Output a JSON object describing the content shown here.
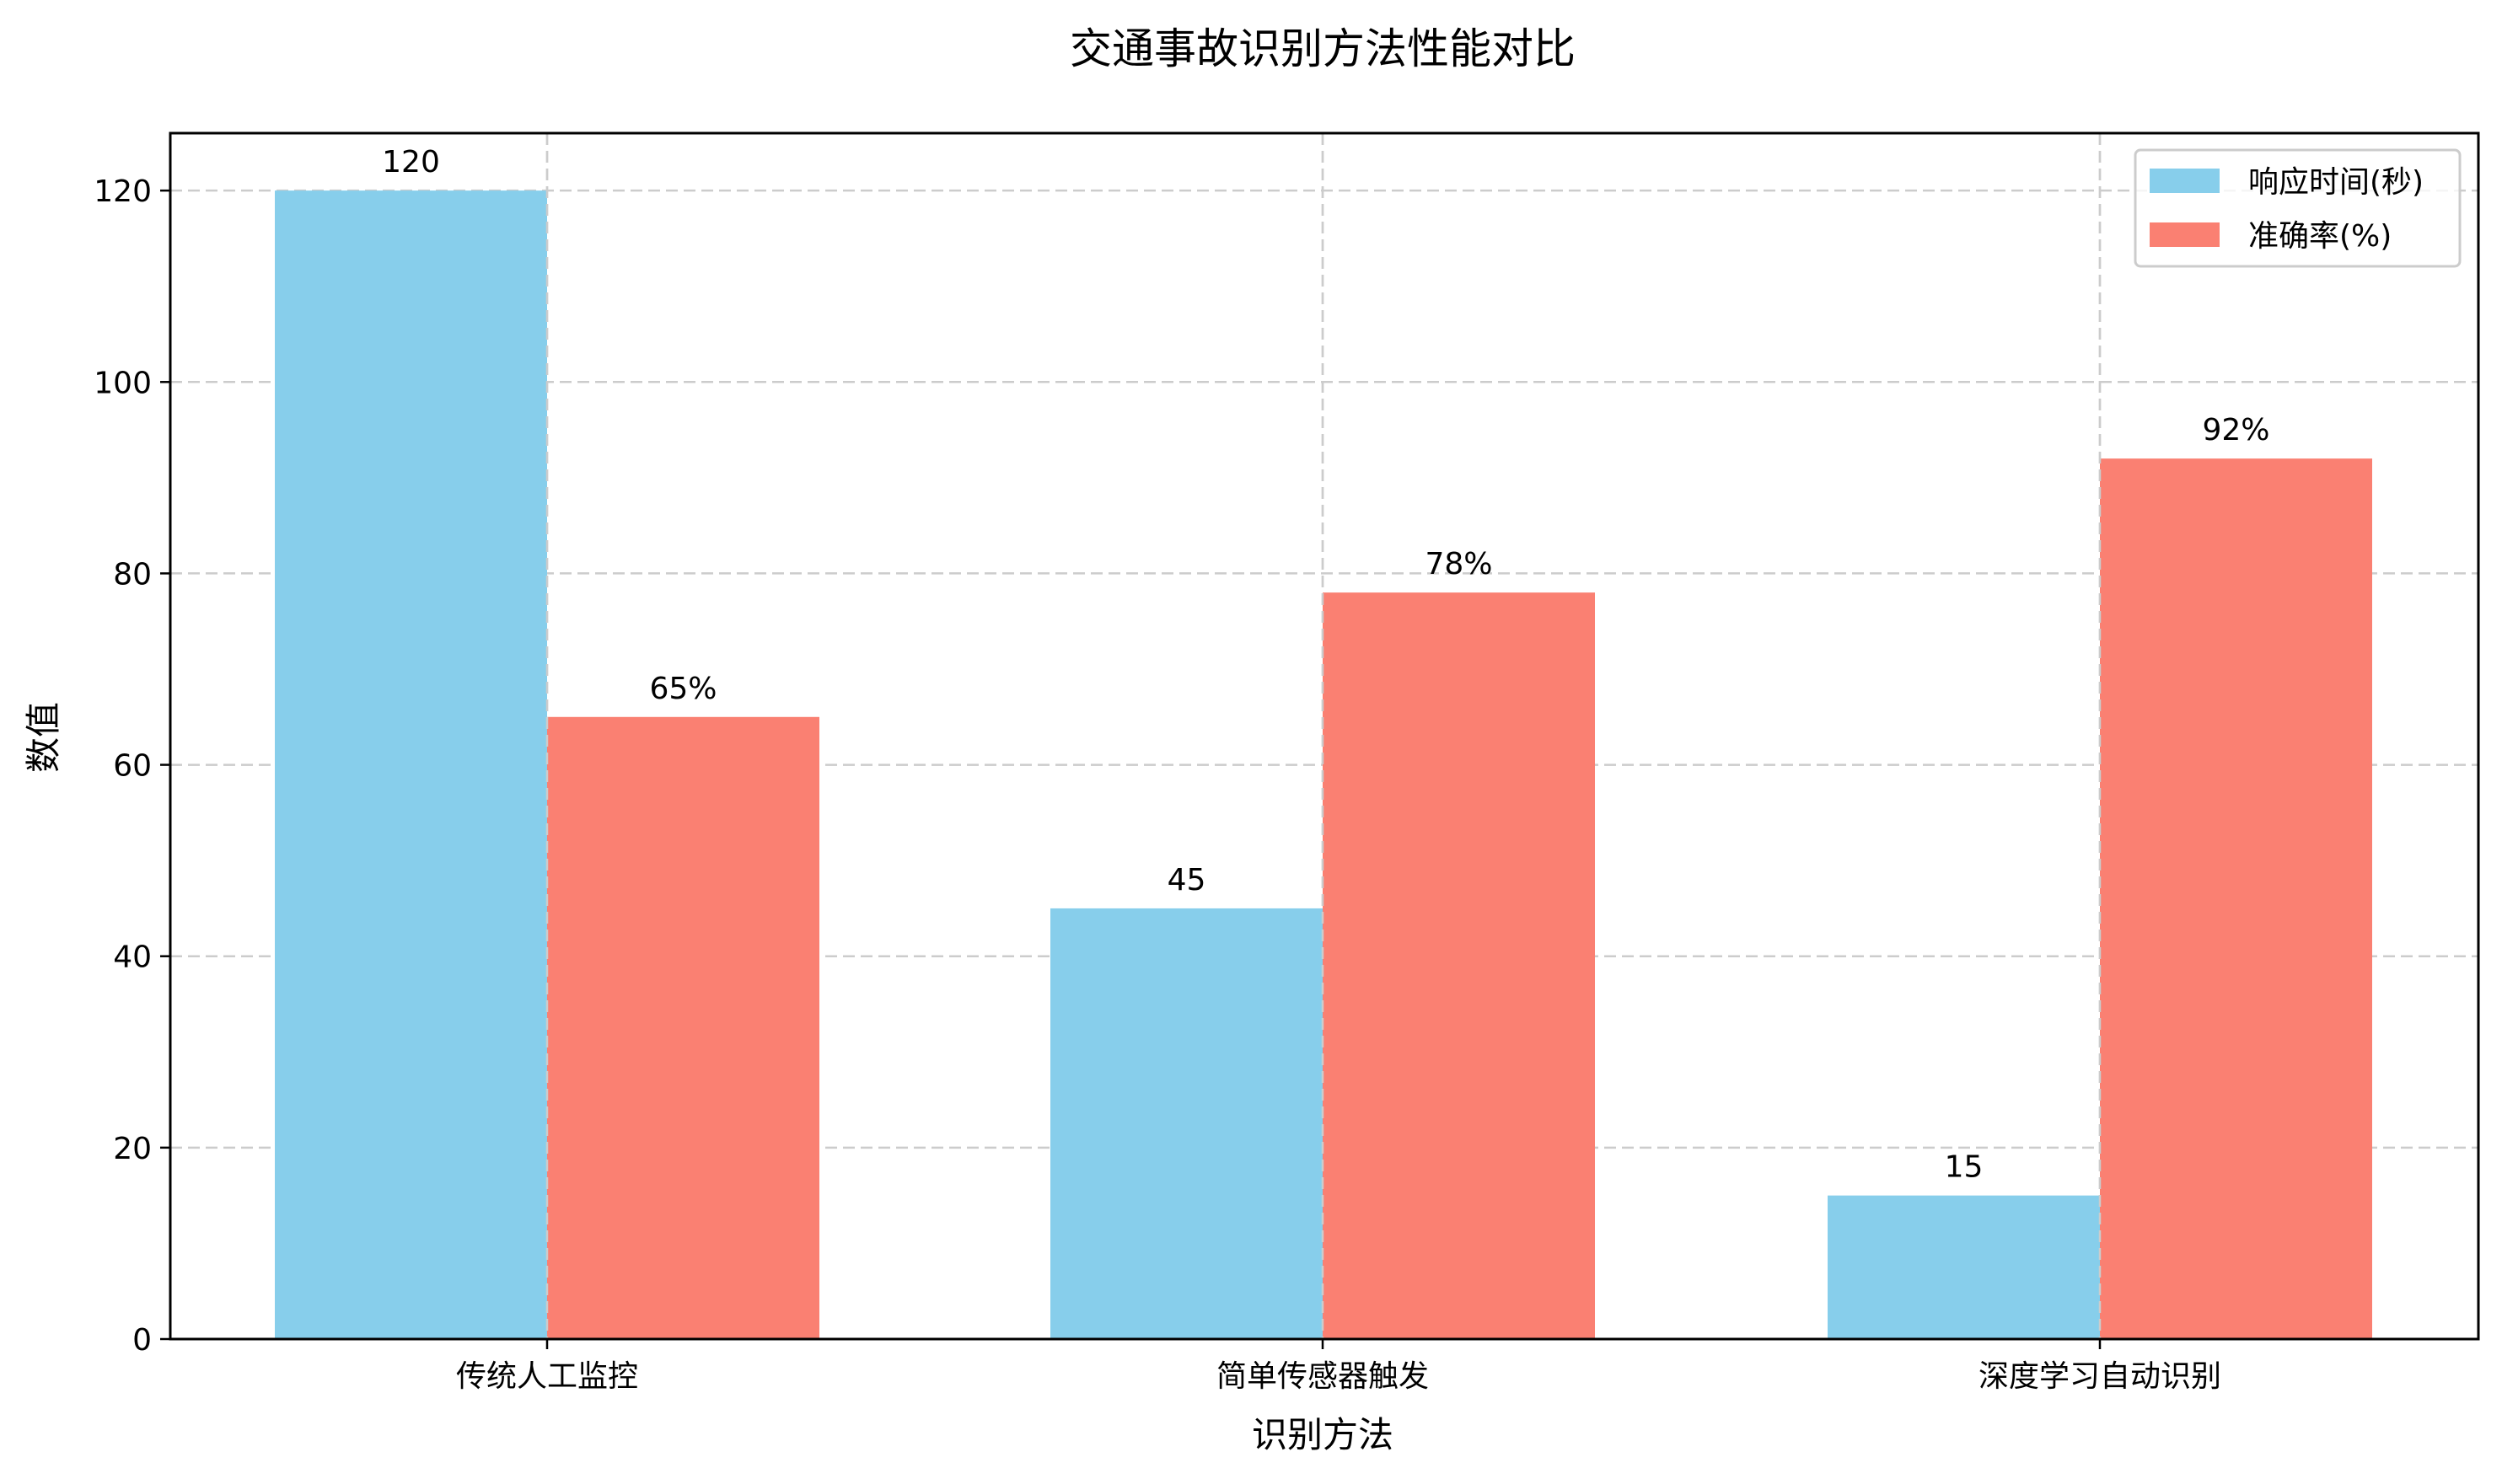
{
  "chart_data": {
    "type": "bar",
    "title": "交通事故识别方法性能对比",
    "xlabel": "识别方法",
    "ylabel": "数值",
    "categories": [
      "传统人工监控",
      "简单传感器触发",
      "深度学习自动识别"
    ],
    "series": [
      {
        "name": "响应时间(秒)",
        "values": [
          120,
          45,
          15
        ],
        "color": "#87CEEB",
        "labels": [
          "120",
          "45",
          "15"
        ]
      },
      {
        "name": "准确率(%)",
        "values": [
          65,
          78,
          92
        ],
        "color": "#FA8072",
        "labels": [
          "65%",
          "78%",
          "92%"
        ]
      }
    ],
    "ylim": [
      0,
      126
    ],
    "yticks": [
      0,
      20,
      40,
      60,
      80,
      100,
      120
    ],
    "grid": true,
    "grid_style": "dashed",
    "legend_position": "upper right"
  }
}
